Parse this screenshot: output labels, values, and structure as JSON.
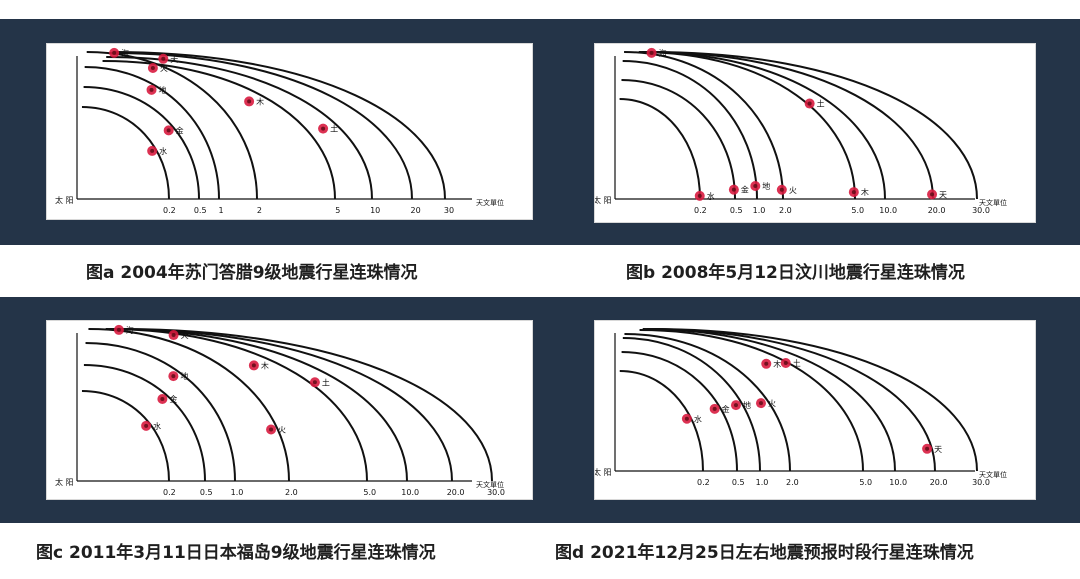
{
  "colors": {
    "band": "#243448",
    "orbit": "#111111",
    "planet": "#d81b3f",
    "text": "#1f1f1f"
  },
  "axis_labels": {
    "sun": "太 阳",
    "unit": "天文單位"
  },
  "panels": [
    {
      "id": "a",
      "caption": "图a  2004年苏门答腊9级地震行星连珠情况",
      "ticks": [
        "0.2",
        "0.5",
        "1",
        "2",
        "5",
        "10",
        "20",
        "30"
      ],
      "planets": [
        {
          "name": "水",
          "orbit": 0,
          "angle": 0.35
        },
        {
          "name": "金",
          "orbit": 1,
          "angle": 0.42
        },
        {
          "name": "地",
          "orbit": 2,
          "angle": 0.62
        },
        {
          "name": "火",
          "orbit": 3,
          "angle": 0.7
        },
        {
          "name": "木",
          "orbit": 4,
          "angle": 0.5
        },
        {
          "name": "土",
          "orbit": 5,
          "angle": 0.33
        },
        {
          "name": "天",
          "orbit": 6,
          "angle": 0.82
        },
        {
          "name": "海",
          "orbit": 7,
          "angle": 0.93
        }
      ]
    },
    {
      "id": "b",
      "caption": "图b  2008年5月12日汶川地震行星连珠情况",
      "ticks": [
        "0.2",
        "0.5",
        "1.0",
        "2.0",
        "5.0",
        "10.0",
        "20.0",
        "30.0"
      ],
      "planets": [
        {
          "name": "水",
          "orbit": 0,
          "angle": 0.02
        },
        {
          "name": "金",
          "orbit": 1,
          "angle": 0.05
        },
        {
          "name": "地",
          "orbit": 2,
          "angle": 0.06
        },
        {
          "name": "火",
          "orbit": 3,
          "angle": 0.04
        },
        {
          "name": "木",
          "orbit": 4,
          "angle": 0.03
        },
        {
          "name": "土",
          "orbit": 5,
          "angle": 0.45
        },
        {
          "name": "天",
          "orbit": 6,
          "angle": 0.02
        },
        {
          "name": "海",
          "orbit": 7,
          "angle": 0.93
        }
      ]
    },
    {
      "id": "c",
      "caption": "图c  2011年3月11日日本福岛9级地震行星连珠情况",
      "ticks": [
        "0.2",
        "0.5",
        "1.0",
        "2.0",
        "5.0",
        "10.0",
        "20.0",
        "30.0"
      ],
      "planets": [
        {
          "name": "水",
          "orbit": 0,
          "angle": 0.42
        },
        {
          "name": "金",
          "orbit": 1,
          "angle": 0.5
        },
        {
          "name": "地",
          "orbit": 2,
          "angle": 0.55
        },
        {
          "name": "火",
          "orbit": 3,
          "angle": 0.22
        },
        {
          "name": "木",
          "orbit": 4,
          "angle": 0.55
        },
        {
          "name": "土",
          "orbit": 5,
          "angle": 0.45
        },
        {
          "name": "天",
          "orbit": 6,
          "angle": 0.82
        },
        {
          "name": "海",
          "orbit": 7,
          "angle": 0.93
        }
      ]
    },
    {
      "id": "d",
      "caption": "图d  2021年12月25日左右地震预报时段行星连珠情况",
      "ticks": [
        "0.2",
        "0.5",
        "1.0",
        "2.0",
        "5.0",
        "10.0",
        "20.0",
        "30.0"
      ],
      "planets": [
        {
          "name": "水",
          "orbit": 0,
          "angle": 0.35
        },
        {
          "name": "金",
          "orbit": 1,
          "angle": 0.35
        },
        {
          "name": "地",
          "orbit": 2,
          "angle": 0.33
        },
        {
          "name": "火",
          "orbit": 3,
          "angle": 0.33
        },
        {
          "name": "木",
          "orbit": 4,
          "angle": 0.55
        },
        {
          "name": "土",
          "orbit": 5,
          "angle": 0.55
        },
        {
          "name": "天",
          "orbit": 6,
          "angle": 0.1
        }
      ]
    }
  ]
}
